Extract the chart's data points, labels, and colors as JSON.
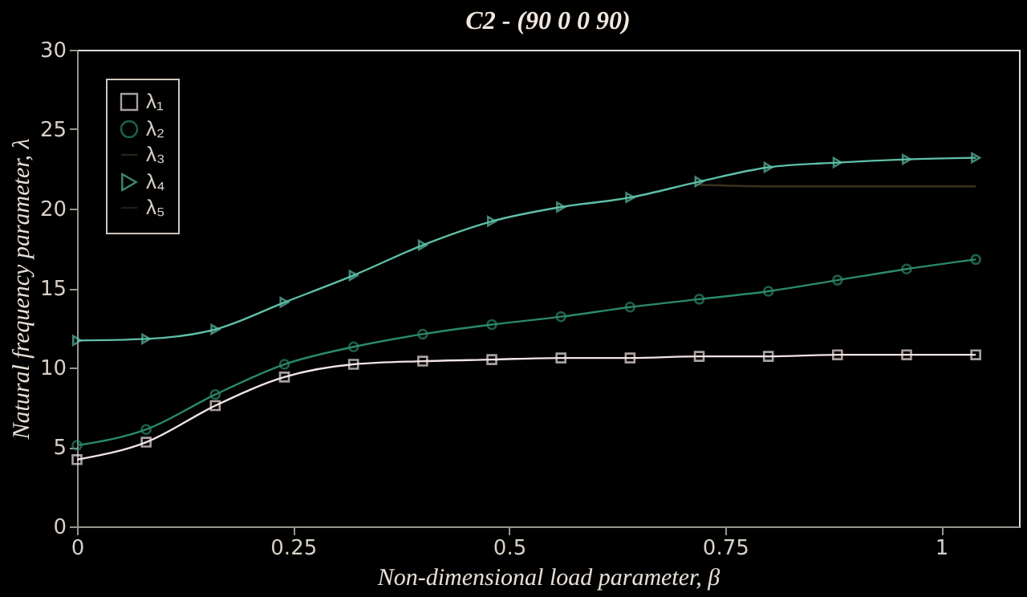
{
  "chart_data": {
    "type": "line",
    "title": "C2 - (90 0 0 90)",
    "xlabel": "Non-dimensional load parameter, β",
    "ylabel": "Natural frequency parameter, λ",
    "x": [
      0,
      0.08,
      0.16,
      0.24,
      0.32,
      0.4,
      0.48,
      0.56,
      0.64,
      0.72,
      0.8,
      0.88,
      0.96,
      1.04
    ],
    "series": [
      {
        "name": "λ₁",
        "color": "#f2e4e4",
        "marker": "square",
        "values": [
          4.2,
          5.3,
          7.6,
          9.4,
          10.2,
          10.4,
          10.5,
          10.6,
          10.6,
          10.7,
          10.7,
          10.8,
          10.8,
          10.8
        ]
      },
      {
        "name": "λ₂",
        "color": "#2a8a6a",
        "marker": "circle",
        "values": [
          5.1,
          6.1,
          8.3,
          10.2,
          11.3,
          12.1,
          12.7,
          13.2,
          13.8,
          14.3,
          14.8,
          15.5,
          16.2,
          16.8
        ]
      },
      {
        "name": "λ₃",
        "color": "#3a3220",
        "marker": "none",
        "values": [
          null,
          null,
          null,
          null,
          null,
          null,
          null,
          null,
          null,
          21.5,
          21.4,
          21.4,
          21.4,
          21.4
        ]
      },
      {
        "name": "λ₄",
        "color": "#5fc0a8",
        "marker": "triangle",
        "values": [
          11.7,
          11.8,
          12.4,
          14.1,
          15.8,
          17.7,
          19.2,
          20.1,
          20.7,
          21.7,
          22.6,
          22.9,
          23.1,
          23.2
        ]
      },
      {
        "name": "λ₅",
        "color": "#302a22",
        "marker": "none",
        "values": [
          null,
          null,
          null,
          null,
          null,
          null,
          null,
          null,
          null,
          null,
          null,
          null,
          null,
          null
        ]
      }
    ],
    "xlim": [
      0,
      1.09
    ],
    "xticks": [
      0,
      0.25,
      0.5,
      0.75,
      1
    ],
    "ylim": [
      0,
      30
    ],
    "yticks": [
      0,
      5,
      10,
      15,
      20,
      25,
      30
    ],
    "grid": false,
    "legend": "top left"
  }
}
